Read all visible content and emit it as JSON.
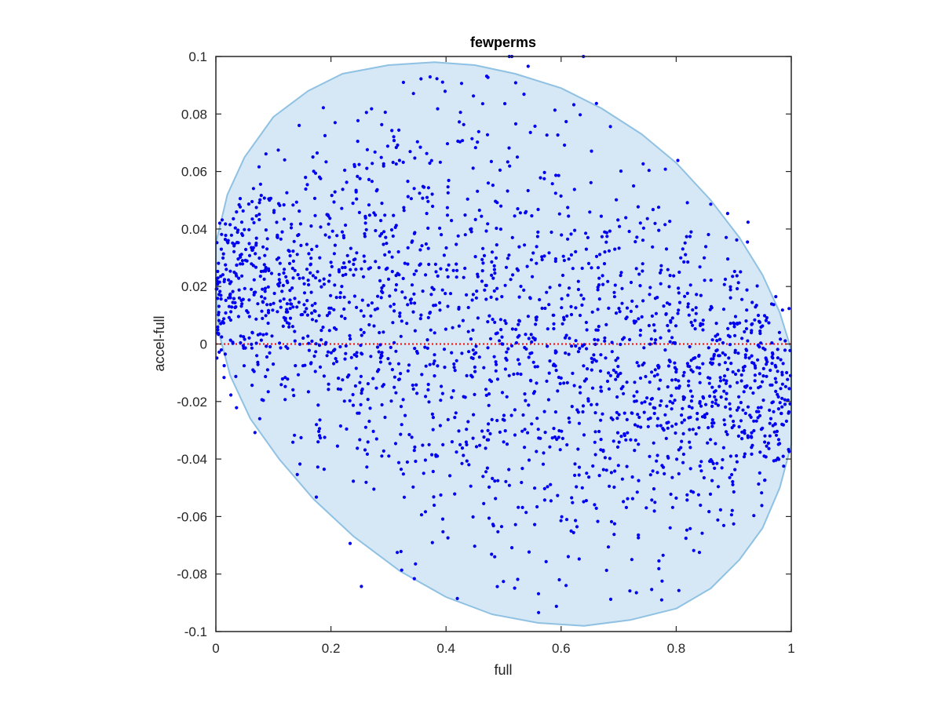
{
  "chart_data": {
    "type": "scatter",
    "title": "fewperms",
    "xlabel": "full",
    "ylabel": "accel-full",
    "xlim": [
      0,
      1
    ],
    "ylim": [
      -0.1,
      0.1
    ],
    "xticks": [
      0,
      0.2,
      0.4,
      0.6,
      0.8,
      1
    ],
    "xtick_labels": [
      "0",
      "0.2",
      "0.4",
      "0.6",
      "0.8",
      "1"
    ],
    "yticks": [
      -0.1,
      -0.08,
      -0.06,
      -0.04,
      -0.02,
      0,
      0.02,
      0.04,
      0.06,
      0.08,
      0.1
    ],
    "ytick_labels": [
      "-0.1",
      "-0.08",
      "-0.06",
      "-0.04",
      "-0.02",
      "0",
      "0.02",
      "0.04",
      "0.06",
      "0.08",
      "0.1"
    ],
    "grid": false,
    "reference_line": {
      "y": 0,
      "style": "dotted",
      "color": "#ff0000"
    },
    "ellipse_region": {
      "fill": "#d6e8f5",
      "stroke": "#8fc1e3",
      "points": [
        [
          0.0,
          0.035
        ],
        [
          0.02,
          0.052
        ],
        [
          0.05,
          0.065
        ],
        [
          0.1,
          0.079
        ],
        [
          0.16,
          0.088
        ],
        [
          0.22,
          0.094
        ],
        [
          0.3,
          0.097
        ],
        [
          0.38,
          0.098
        ],
        [
          0.45,
          0.097
        ],
        [
          0.52,
          0.094
        ],
        [
          0.6,
          0.089
        ],
        [
          0.67,
          0.082
        ],
        [
          0.74,
          0.073
        ],
        [
          0.8,
          0.063
        ],
        [
          0.86,
          0.05
        ],
        [
          0.91,
          0.037
        ],
        [
          0.95,
          0.024
        ],
        [
          0.98,
          0.011
        ],
        [
          1.0,
          -0.002
        ],
        [
          1.0,
          -0.035
        ],
        [
          0.98,
          -0.05
        ],
        [
          0.95,
          -0.064
        ],
        [
          0.91,
          -0.075
        ],
        [
          0.86,
          -0.085
        ],
        [
          0.8,
          -0.092
        ],
        [
          0.72,
          -0.096
        ],
        [
          0.64,
          -0.098
        ],
        [
          0.56,
          -0.097
        ],
        [
          0.48,
          -0.094
        ],
        [
          0.4,
          -0.088
        ],
        [
          0.32,
          -0.079
        ],
        [
          0.24,
          -0.067
        ],
        [
          0.17,
          -0.054
        ],
        [
          0.11,
          -0.04
        ],
        [
          0.06,
          -0.026
        ],
        [
          0.025,
          -0.011
        ],
        [
          0.005,
          0.004
        ],
        [
          0.0,
          0.02
        ]
      ]
    },
    "series": [
      {
        "color": "#0000ee",
        "marker_size": 2.1,
        "n_points": 2200
      }
    ]
  }
}
